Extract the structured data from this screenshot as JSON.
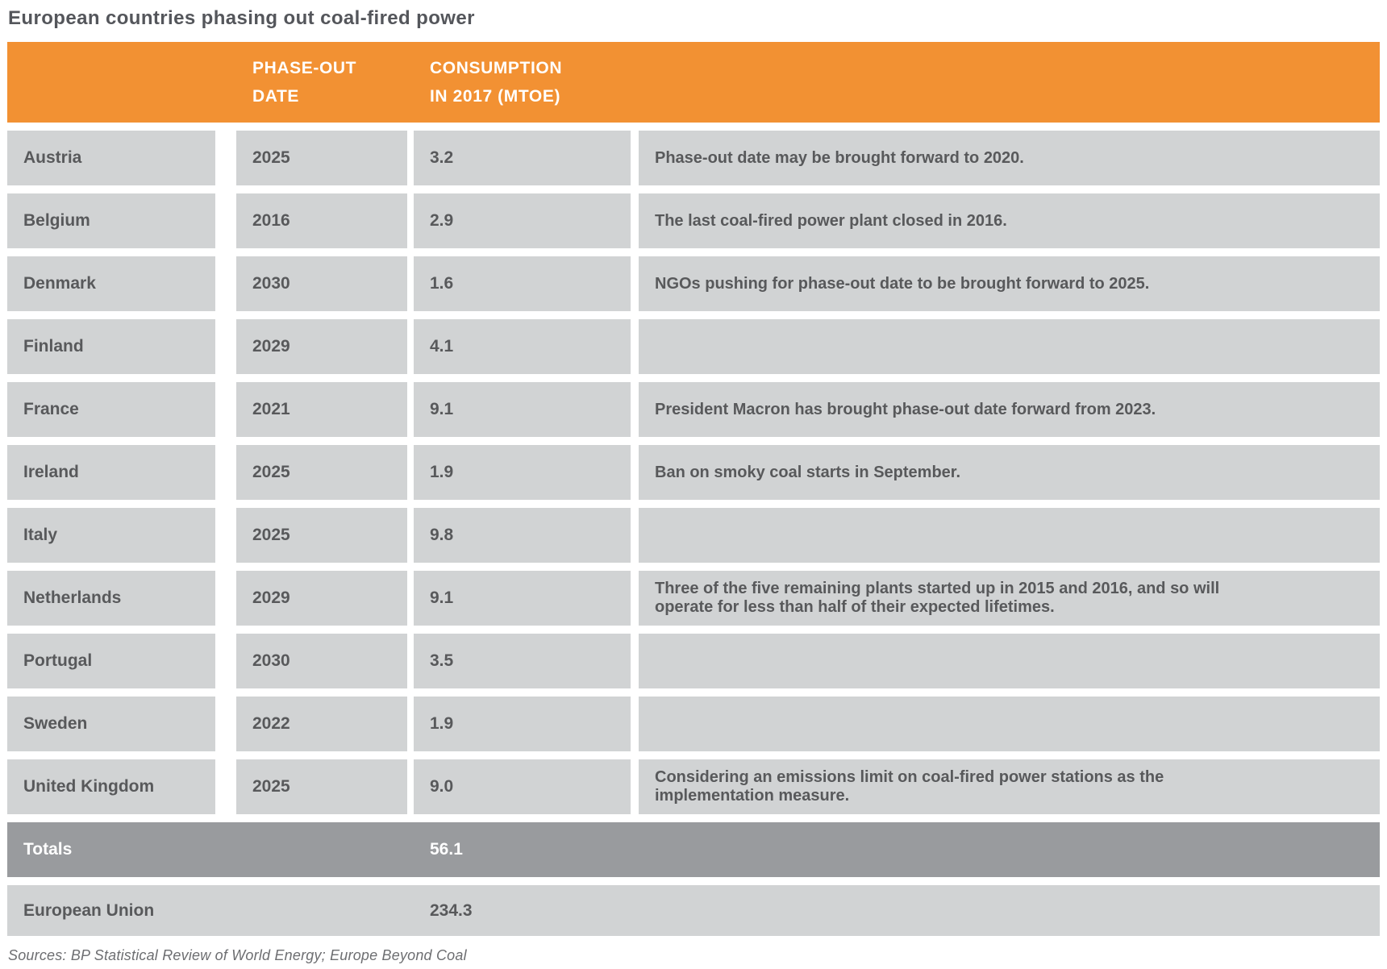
{
  "title": "European countries phasing out coal-fired power",
  "colors": {
    "header_bg": "#F29133",
    "cell_bg": "#D1D3D4",
    "totals_bg": "#999B9E",
    "header_text": "#FFFFFF",
    "cell_text": "#58595B",
    "title_text": "#54565B",
    "sources_text": "#6D6E71",
    "gutter": "#FFFFFF"
  },
  "chart_data": {
    "type": "table",
    "title": "European countries phasing out coal-fired power",
    "column_headers": {
      "country": "",
      "phase_out": "PHASE-OUT\nDATE",
      "consumption": "CONSUMPTION\nIN 2017 (MTOE)",
      "notes": ""
    },
    "rows": [
      {
        "country": "Austria",
        "phase_out_date": "2025",
        "consumption_mtoe": "3.2",
        "note": "Phase-out date may be brought forward to 2020."
      },
      {
        "country": "Belgium",
        "phase_out_date": "2016",
        "consumption_mtoe": "2.9",
        "note": "The last coal-fired power plant closed in 2016."
      },
      {
        "country": "Denmark",
        "phase_out_date": "2030",
        "consumption_mtoe": "1.6",
        "note": "NGOs pushing for phase-out date to be brought forward to 2025."
      },
      {
        "country": "Finland",
        "phase_out_date": "2029",
        "consumption_mtoe": "4.1",
        "note": ""
      },
      {
        "country": "France",
        "phase_out_date": "2021",
        "consumption_mtoe": "9.1",
        "note": "President Macron has brought phase-out date forward from 2023."
      },
      {
        "country": "Ireland",
        "phase_out_date": "2025",
        "consumption_mtoe": "1.9",
        "note": "Ban on smoky coal starts in September."
      },
      {
        "country": "Italy",
        "phase_out_date": "2025",
        "consumption_mtoe": "9.8",
        "note": ""
      },
      {
        "country": "Netherlands",
        "phase_out_date": "2029",
        "consumption_mtoe": "9.1",
        "note": "Three of the five remaining plants started up in 2015 and 2016, and so will operate for less than half of their expected lifetimes."
      },
      {
        "country": "Portugal",
        "phase_out_date": "2030",
        "consumption_mtoe": "3.5",
        "note": ""
      },
      {
        "country": "Sweden",
        "phase_out_date": "2022",
        "consumption_mtoe": "1.9",
        "note": ""
      },
      {
        "country": "United Kingdom",
        "phase_out_date": "2025",
        "consumption_mtoe": "9.0",
        "note": "Considering an emissions limit on coal-fired power stations as the implementation measure."
      }
    ],
    "totals": {
      "label": "Totals",
      "consumption_mtoe": "56.1"
    },
    "european_union": {
      "label": "European Union",
      "consumption_mtoe": "234.3"
    }
  },
  "footer": {
    "sources": "Sources: BP Statistical Review of World Energy; Europe Beyond Coal"
  }
}
